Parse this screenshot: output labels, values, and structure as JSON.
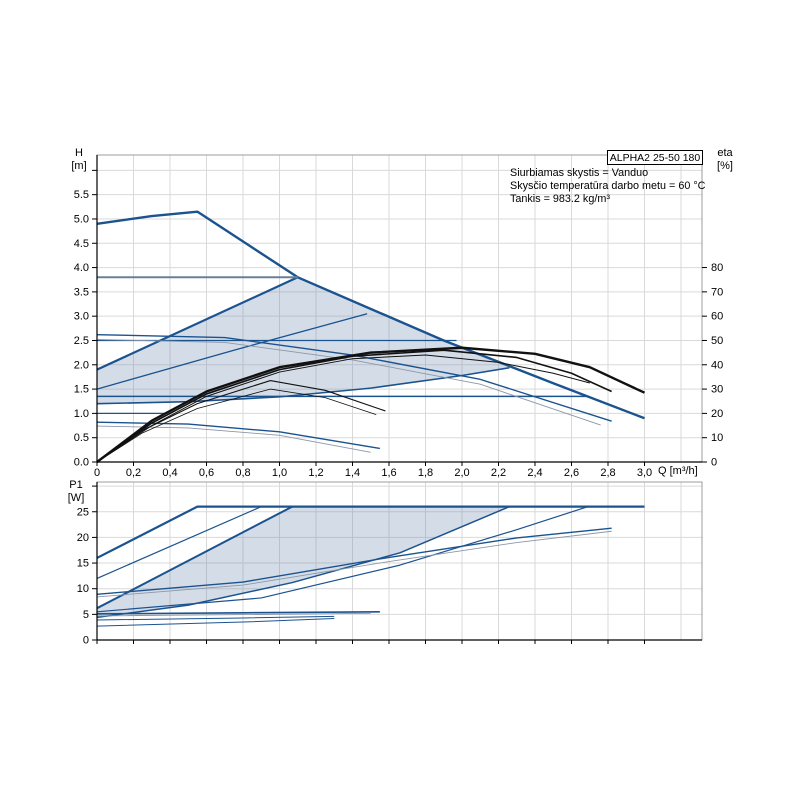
{
  "page": {
    "background": "#ffffff"
  },
  "header": {
    "title_box": "ALPHA2 25-50 180",
    "info_lines": [
      "Siurbiamas skystis = Vanduo",
      "Skysčio temperatūra darbo metu = 60 °C",
      "Tankis = 983.2 kg/m³"
    ]
  },
  "axis_labels": {
    "h_line1": "H",
    "h_line2": "[m]",
    "eta_line1": "eta",
    "eta_line2": "[%]",
    "p_line1": "P1",
    "p_line2": "[W]",
    "q": "Q [m³/h]"
  },
  "colors": {
    "curve_blue": "#1b538f",
    "curve_gray": "#8a97aa",
    "curve_grayblue": "#68809c",
    "curve_black": "#111111",
    "region_fill": "rgba(111,140,180,0.30)",
    "frame": "#9d9d9d",
    "grid": "#d9d9d9",
    "axis": "#000000",
    "text": "#000000"
  },
  "chart_data": [
    {
      "type": "line",
      "name": "head-flow-chart",
      "title": "ALPHA2 25-50 180",
      "xlabel": "Q [m³/h]",
      "ylabel": "H [m]",
      "y2label": "eta [%]",
      "xlim": [
        0,
        3.315
      ],
      "ylim": [
        0,
        6.316
      ],
      "y2lim": [
        0,
        126.3
      ],
      "grid": true,
      "legend": "none",
      "xticks": {
        "values": [
          0,
          0.2,
          0.4,
          0.6,
          0.8,
          1.0,
          1.2,
          1.4,
          1.6,
          1.8,
          2.0,
          2.2,
          2.4,
          2.6,
          2.8,
          3.0
        ],
        "labels": [
          "0",
          "0,2",
          "0,4",
          "0,6",
          "0,8",
          "1,0",
          "1,2",
          "1,4",
          "1,6",
          "1,8",
          "2,0",
          "2,2",
          "2,4",
          "2,6",
          "2,8",
          "3,0"
        ]
      },
      "yticks": {
        "values": [
          0,
          0.5,
          1.0,
          1.5,
          2.0,
          2.5,
          3.0,
          3.5,
          4.0,
          4.5,
          5.0,
          5.5,
          6.0
        ],
        "labels": [
          "0.0",
          "0.5",
          "1.0",
          "1.5",
          "2.0",
          "2.5",
          "3.0",
          "3.5",
          "4.0",
          "4.5",
          "5.0",
          "5.5",
          ""
        ]
      },
      "y2ticks": {
        "values": [
          0,
          10,
          20,
          30,
          40,
          50,
          60,
          70,
          80
        ],
        "labels": [
          "0",
          "10",
          "20",
          "30",
          "40",
          "50",
          "60",
          "70",
          "80"
        ]
      },
      "xgrid": [
        0.2,
        0.4,
        0.6,
        0.8,
        1.0,
        1.2,
        1.4,
        1.6,
        1.8,
        2.0,
        2.2,
        2.4,
        2.6,
        2.8,
        3.0,
        3.2
      ],
      "ygrid": [
        0.5,
        1.0,
        1.5,
        2.0,
        2.5,
        3.0,
        3.5,
        4.0,
        4.5,
        5.0,
        5.5,
        6.0
      ],
      "region": {
        "name": "autoadapt-region",
        "points": [
          [
            0,
            1.2
          ],
          [
            0,
            1.9
          ],
          [
            1.1,
            3.8
          ],
          [
            1.9,
            2.5
          ],
          [
            2.26,
            1.94
          ],
          [
            2.0,
            1.78
          ],
          [
            1.5,
            1.52
          ],
          [
            1.0,
            1.34
          ],
          [
            0.5,
            1.24
          ]
        ]
      },
      "series": [
        {
          "id": "max-speed-curve",
          "axis": "y",
          "color": "blue",
          "width": 2.4,
          "points": [
            [
              0,
              4.9
            ],
            [
              0.3,
              5.06
            ],
            [
              0.55,
              5.15
            ],
            [
              1.1,
              3.8
            ],
            [
              1.9,
              2.5
            ],
            [
              2.5,
              1.62
            ],
            [
              3.0,
              0.9
            ]
          ]
        },
        {
          "id": "autoadapt-top-edge",
          "axis": "y",
          "color": "blue",
          "width": 2.2,
          "points": [
            [
              0,
              1.9
            ],
            [
              1.1,
              3.8
            ]
          ]
        },
        {
          "id": "autoadapt-bottom-edge",
          "axis": "y",
          "color": "blue",
          "width": 1.6,
          "points": [
            [
              0,
              1.2
            ],
            [
              0.5,
              1.24
            ],
            [
              1.0,
              1.34
            ],
            [
              1.5,
              1.52
            ],
            [
              2.0,
              1.78
            ],
            [
              2.26,
              1.94
            ]
          ]
        },
        {
          "id": "prop-pressure-curve",
          "axis": "y",
          "color": "blue",
          "width": 1.3,
          "points": [
            [
              0,
              1.5
            ],
            [
              0.75,
              2.3
            ],
            [
              1.48,
              3.05
            ]
          ]
        },
        {
          "id": "const-pressure-3-8",
          "axis": "y",
          "color": "grayblue",
          "width": 2.0,
          "points": [
            [
              0,
              3.8
            ],
            [
              1.1,
              3.8
            ]
          ]
        },
        {
          "id": "const-pressure-2-5",
          "axis": "y",
          "color": "blue",
          "width": 1.3,
          "points": [
            [
              0,
              2.5
            ],
            [
              1.97,
              2.5
            ]
          ]
        },
        {
          "id": "const-pressure-1-35",
          "axis": "y",
          "color": "blue",
          "width": 1.6,
          "points": [
            [
              0,
              1.35
            ],
            [
              2.68,
              1.35
            ]
          ]
        },
        {
          "id": "const-pressure-1-0",
          "axis": "y",
          "color": "blue",
          "width": 1.2,
          "points": [
            [
              0,
              1.0
            ],
            [
              0.38,
              1.0
            ]
          ]
        },
        {
          "id": "speed2-curve",
          "axis": "y",
          "color": "blue",
          "width": 1.4,
          "points": [
            [
              0,
              2.62
            ],
            [
              0.7,
              2.56
            ],
            [
              1.4,
              2.2
            ],
            [
              2.1,
              1.7
            ],
            [
              2.82,
              0.84
            ]
          ]
        },
        {
          "id": "speed2-curve-thin",
          "axis": "y",
          "color": "gray",
          "width": 0.9,
          "points": [
            [
              0,
              2.52
            ],
            [
              0.7,
              2.46
            ],
            [
              1.4,
              2.1
            ],
            [
              2.1,
              1.6
            ],
            [
              2.76,
              0.76
            ]
          ]
        },
        {
          "id": "speed1-curve",
          "axis": "y",
          "color": "blue",
          "width": 1.4,
          "points": [
            [
              0,
              0.82
            ],
            [
              0.5,
              0.78
            ],
            [
              1.0,
              0.62
            ],
            [
              1.55,
              0.28
            ]
          ]
        },
        {
          "id": "speed1-curve-thin",
          "axis": "y",
          "color": "gray",
          "width": 0.9,
          "points": [
            [
              0,
              0.74
            ],
            [
              0.5,
              0.7
            ],
            [
              1.0,
              0.55
            ],
            [
              1.5,
              0.2
            ]
          ]
        },
        {
          "id": "eta-curve-max",
          "axis": "y2",
          "color": "black",
          "width": 2.4,
          "points": [
            [
              0,
              0
            ],
            [
              0.3,
              17
            ],
            [
              0.6,
              29
            ],
            [
              1.0,
              39
            ],
            [
              1.5,
              45
            ],
            [
              2.0,
              47
            ],
            [
              2.4,
              44.5
            ],
            [
              2.7,
              39
            ],
            [
              3.0,
              28.5
            ]
          ]
        },
        {
          "id": "eta-curve-2",
          "axis": "y2",
          "color": "black",
          "width": 1.6,
          "points": [
            [
              0,
              0
            ],
            [
              0.3,
              16
            ],
            [
              0.6,
              28
            ],
            [
              1.0,
              38
            ],
            [
              1.4,
              43.5
            ],
            [
              1.9,
              46
            ],
            [
              2.3,
              43
            ],
            [
              2.6,
              36.5
            ],
            [
              2.82,
              29
            ]
          ]
        },
        {
          "id": "eta-curve-3",
          "axis": "y2",
          "color": "black",
          "width": 1.0,
          "points": [
            [
              0,
              0
            ],
            [
              0.3,
              15
            ],
            [
              0.6,
              27
            ],
            [
              1.0,
              37
            ],
            [
              1.4,
              42.5
            ],
            [
              1.8,
              44
            ],
            [
              2.2,
              41
            ],
            [
              2.5,
              36.5
            ],
            [
              2.7,
              32.5
            ]
          ]
        },
        {
          "id": "eta-curve-4",
          "axis": "y2",
          "color": "black",
          "width": 1.1,
          "points": [
            [
              0,
              0
            ],
            [
              0.25,
              13
            ],
            [
              0.55,
              24
            ],
            [
              0.95,
              33.5
            ],
            [
              1.25,
              29.5
            ],
            [
              1.58,
              21
            ]
          ]
        },
        {
          "id": "eta-curve-5",
          "axis": "y2",
          "color": "black",
          "width": 0.8,
          "points": [
            [
              0,
              0
            ],
            [
              0.25,
              12
            ],
            [
              0.55,
              22
            ],
            [
              0.95,
              30
            ],
            [
              1.25,
              26.5
            ],
            [
              1.53,
              19.5
            ]
          ]
        }
      ]
    },
    {
      "type": "line",
      "name": "power-flow-chart",
      "title": "",
      "xlabel": "",
      "ylabel": "P1 [W]",
      "xlim": [
        0,
        3.315
      ],
      "ylim": [
        0,
        30.8
      ],
      "grid": true,
      "legend": "none",
      "xticks": {
        "values": [
          0,
          0.2,
          0.4,
          0.6,
          0.8,
          1.0,
          1.2,
          1.4,
          1.6,
          1.8,
          2.0,
          2.2,
          2.4,
          2.6,
          2.8,
          3.0
        ],
        "labels": []
      },
      "yticks": {
        "values": [
          0,
          5,
          10,
          15,
          20,
          25,
          30
        ],
        "labels": [
          "0",
          "5",
          "10",
          "15",
          "20",
          "25",
          ""
        ]
      },
      "xgrid": [
        0.2,
        0.4,
        0.6,
        0.8,
        1.0,
        1.2,
        1.4,
        1.6,
        1.8,
        2.0,
        2.2,
        2.4,
        2.6,
        2.8,
        3.0,
        3.2
      ],
      "ygrid": [
        5,
        10,
        15,
        20,
        25,
        30
      ],
      "region": {
        "name": "autoadapt-power-region",
        "points": [
          [
            0,
            4.4
          ],
          [
            0,
            6.2
          ],
          [
            1.07,
            26
          ],
          [
            2.26,
            26
          ],
          [
            1.66,
            17
          ],
          [
            1.07,
            11.2
          ],
          [
            0.5,
            6.8
          ]
        ]
      },
      "series": [
        {
          "id": "power-max-speed",
          "axis": "y",
          "color": "blue",
          "width": 2.2,
          "points": [
            [
              0,
              16
            ],
            [
              0.55,
              26
            ],
            [
              3.0,
              26
            ]
          ]
        },
        {
          "id": "power-riser",
          "axis": "y",
          "color": "blue",
          "width": 1.2,
          "points": [
            [
              0,
              12
            ],
            [
              0.9,
              26
            ]
          ]
        },
        {
          "id": "power-autoadapt-top",
          "axis": "y",
          "color": "blue",
          "width": 2.0,
          "points": [
            [
              0,
              6.2
            ],
            [
              1.07,
              26
            ]
          ]
        },
        {
          "id": "power-autoadapt-bottom",
          "axis": "y",
          "color": "blue",
          "width": 1.5,
          "points": [
            [
              0,
              4.4
            ],
            [
              0.5,
              6.8
            ],
            [
              1.07,
              11.2
            ],
            [
              1.66,
              17
            ],
            [
              2.26,
              26
            ]
          ]
        },
        {
          "id": "power-prop-pressure",
          "axis": "y",
          "color": "blue",
          "width": 1.2,
          "points": [
            [
              0,
              5.5
            ],
            [
              0.9,
              8.2
            ],
            [
              1.66,
              14.6
            ],
            [
              2.3,
              21.5
            ],
            [
              2.69,
              26
            ]
          ]
        },
        {
          "id": "power-speed2",
          "axis": "y",
          "color": "blue",
          "width": 1.4,
          "points": [
            [
              0,
              8.9
            ],
            [
              0.8,
              11.3
            ],
            [
              1.6,
              16.1
            ],
            [
              2.3,
              19.9
            ],
            [
              2.82,
              21.8
            ]
          ]
        },
        {
          "id": "power-speed2-thin",
          "axis": "y",
          "color": "gray",
          "width": 0.9,
          "points": [
            [
              0,
              8.4
            ],
            [
              0.8,
              10.7
            ],
            [
              1.6,
              15.3
            ],
            [
              2.3,
              19.0
            ],
            [
              2.82,
              21.2
            ]
          ]
        },
        {
          "id": "power-speed1",
          "axis": "y",
          "color": "blue",
          "width": 1.6,
          "points": [
            [
              0,
              5.1
            ],
            [
              0.8,
              5.3
            ],
            [
              1.55,
              5.5
            ]
          ]
        },
        {
          "id": "power-speed1-thin",
          "axis": "y",
          "color": "gray",
          "width": 0.9,
          "points": [
            [
              0,
              4.7
            ],
            [
              0.8,
              4.95
            ],
            [
              1.5,
              5.2
            ]
          ]
        },
        {
          "id": "power-low-1",
          "axis": "y",
          "color": "blue",
          "width": 1.0,
          "points": [
            [
              0,
              3.9
            ],
            [
              0.8,
              4.3
            ],
            [
              1.3,
              4.6
            ]
          ]
        },
        {
          "id": "power-low-2",
          "axis": "y",
          "color": "blue",
          "width": 1.0,
          "points": [
            [
              0,
              2.7
            ],
            [
              0.8,
              3.5
            ],
            [
              1.3,
              4.2
            ]
          ]
        }
      ]
    }
  ]
}
